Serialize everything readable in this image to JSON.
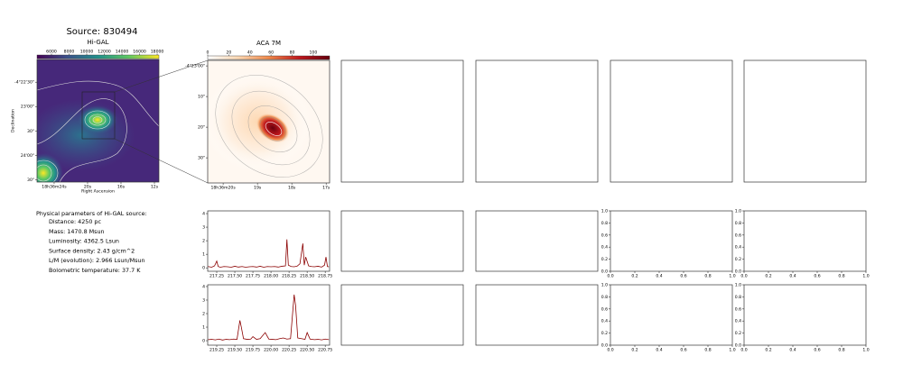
{
  "title": "Source: 830494",
  "source_parameters": {
    "heading": "Physical parameters of Hi-GAL source:",
    "items": [
      "Distance: 4250 pc",
      "Mass: 1470.8 Msun",
      "Luminosity: 4362.5 Lsun",
      "Surface density: 2.43 g/cm^2",
      "L/M (evolution): 2.966 Lsun/Msun",
      "Bolometric temperature: 37.7 K"
    ]
  },
  "chart_data": [
    {
      "type": "image",
      "title": "Hi-GAL",
      "xlabel": "Right Ascension",
      "ylabel": "Declination",
      "xlim": [
        26.05,
        11.46
      ],
      "xticks": [
        {
          "value": 24,
          "label": "18h36m24s"
        },
        {
          "value": 20,
          "label": "20s"
        },
        {
          "value": 16,
          "label": "16s"
        },
        {
          "value": 12,
          "label": "12s"
        }
      ],
      "ylim": [
        -15873,
        -15722
      ],
      "yticks": [
        {
          "value": -15750,
          "label": "-4°22'30\""
        },
        {
          "value": -15780,
          "label": "23'00\""
        },
        {
          "value": -15810,
          "label": "30\""
        },
        {
          "value": -15840,
          "label": "24'00\""
        },
        {
          "value": -15870,
          "label": "30\""
        }
      ],
      "colorbar": {
        "lim": [
          4360,
          18200
        ],
        "ticks": [
          6000,
          8000,
          10000,
          12000,
          14000,
          16000,
          18000
        ],
        "colors": [
          "#440154",
          "#3b528b",
          "#21918c",
          "#5ec962",
          "#fde725"
        ]
      }
    },
    {
      "type": "image",
      "title": "ACA 7M",
      "xlim": [
        20.45,
        16.9
      ],
      "xticks": [
        {
          "value": 20,
          "label": "18h36m20s"
        },
        {
          "value": 19,
          "label": "19s"
        },
        {
          "value": 18,
          "label": "18s"
        },
        {
          "value": 17,
          "label": "17s"
        }
      ],
      "ylim": [
        -15818.2,
        -15778.2
      ],
      "yticks": [
        {
          "value": -15780,
          "label": "-4°23'00\""
        },
        {
          "value": -15790,
          "label": "10\""
        },
        {
          "value": -15800,
          "label": "20\""
        },
        {
          "value": -15810,
          "label": "30\""
        }
      ],
      "colorbar": {
        "lim": [
          0,
          115.5
        ],
        "ticks": [
          0,
          20,
          40,
          60,
          80,
          100
        ],
        "colors": [
          "#ffffff",
          "#fdd9b4",
          "#f08a4b",
          "#c0181d",
          "#67000d"
        ]
      }
    },
    {
      "type": "line",
      "xlim": [
        217.125,
        218.81
      ],
      "ylim": [
        -0.25,
        4.2
      ],
      "xticks": [
        217.25,
        {
          "value": 217.5,
          "label": "217.50"
        },
        {
          "value": 217.75,
          "label": "217.75"
        },
        {
          "value": 218,
          "label": "218.00"
        },
        218.25,
        {
          "value": 218.5,
          "label": "218.50"
        },
        218.75
      ],
      "yticks": [
        0,
        1,
        2,
        3,
        4
      ],
      "x": [
        217.13,
        217.18,
        217.22,
        217.25,
        217.27,
        217.3,
        217.35,
        217.4,
        217.45,
        217.5,
        217.55,
        217.6,
        217.65,
        217.7,
        217.75,
        217.8,
        217.85,
        217.9,
        217.95,
        218.0,
        218.05,
        218.1,
        218.15,
        218.2,
        218.22,
        218.24,
        218.28,
        218.32,
        218.36,
        218.4,
        218.44,
        218.46,
        218.48,
        218.52,
        218.56,
        218.6,
        218.65,
        218.7,
        218.74,
        218.76,
        218.78,
        218.8
      ],
      "series": [
        {
          "color": "#8b0000",
          "values": [
            0.1,
            0.05,
            0.15,
            0.5,
            0.1,
            0.05,
            0.1,
            0.08,
            0.05,
            0.12,
            0.06,
            0.1,
            0.05,
            0.08,
            0.1,
            0.06,
            0.12,
            0.05,
            0.1,
            0.08,
            0.1,
            0.06,
            0.12,
            0.15,
            2.1,
            0.2,
            0.1,
            0.08,
            0.12,
            0.3,
            1.8,
            0.2,
            0.8,
            0.15,
            0.1,
            0.08,
            0.12,
            0.06,
            0.2,
            0.8,
            0.1,
            0.08
          ]
        }
      ]
    },
    {
      "type": "line",
      "xlim": [
        219.125,
        220.81
      ],
      "ylim": [
        -0.33,
        4.13
      ],
      "xticks": [
        219.25,
        {
          "value": 219.5,
          "label": "219.50"
        },
        219.75,
        {
          "value": 220,
          "label": "220.00"
        },
        220.25,
        {
          "value": 220.5,
          "label": "220.50"
        },
        220.75
      ],
      "yticks": [
        0,
        1,
        2,
        3,
        4
      ],
      "x": [
        219.13,
        219.18,
        219.23,
        219.28,
        219.33,
        219.38,
        219.43,
        219.48,
        219.53,
        219.57,
        219.59,
        219.62,
        219.67,
        219.72,
        219.75,
        219.8,
        219.85,
        219.92,
        219.97,
        220.02,
        220.07,
        220.12,
        220.17,
        220.22,
        220.27,
        220.32,
        220.34,
        220.37,
        220.42,
        220.47,
        220.5,
        220.54,
        220.6,
        220.65,
        220.7,
        220.75,
        220.8
      ],
      "series": [
        {
          "color": "#8b0000",
          "values": [
            0.08,
            0.1,
            0.06,
            0.12,
            0.05,
            0.1,
            0.08,
            0.12,
            0.1,
            1.5,
            1.0,
            0.15,
            0.1,
            0.12,
            0.3,
            0.1,
            0.15,
            0.6,
            0.12,
            0.1,
            0.08,
            0.15,
            0.2,
            0.12,
            0.15,
            3.4,
            2.6,
            0.2,
            0.15,
            0.1,
            0.6,
            0.12,
            0.08,
            0.1,
            0.06,
            0.12,
            0.08
          ]
        }
      ]
    },
    {
      "type": "empty",
      "xlim": [
        0,
        1
      ],
      "ylim": [
        0,
        1
      ],
      "xticks": [
        {
          "value": 0,
          "label": "0.0"
        },
        {
          "value": 0.2,
          "label": "0.2"
        },
        {
          "value": 0.4,
          "label": "0.4"
        },
        {
          "value": 0.6,
          "label": "0.6"
        },
        {
          "value": 0.8,
          "label": "0.8"
        },
        {
          "value": 1,
          "label": "1.0"
        }
      ],
      "yticks": [
        {
          "value": 0,
          "label": "0.0"
        },
        {
          "value": 0.2,
          "label": "0.2"
        },
        {
          "value": 0.4,
          "label": "0.4"
        },
        {
          "value": 0.6,
          "label": "0.6"
        },
        {
          "value": 0.8,
          "label": "0.8"
        },
        {
          "value": 1,
          "label": "1.0"
        }
      ]
    },
    {
      "type": "empty",
      "xlim": [
        0,
        1
      ],
      "ylim": [
        0,
        1
      ],
      "xticks": [
        {
          "value": 0,
          "label": "0.0"
        },
        {
          "value": 0.2,
          "label": "0.2"
        },
        {
          "value": 0.4,
          "label": "0.4"
        },
        {
          "value": 0.6,
          "label": "0.6"
        },
        {
          "value": 0.8,
          "label": "0.8"
        },
        {
          "value": 1,
          "label": "1.0"
        }
      ],
      "yticks": [
        {
          "value": 0,
          "label": "0.0"
        },
        {
          "value": 0.2,
          "label": "0.2"
        },
        {
          "value": 0.4,
          "label": "0.4"
        },
        {
          "value": 0.6,
          "label": "0.6"
        },
        {
          "value": 0.8,
          "label": "0.8"
        },
        {
          "value": 1,
          "label": "1.0"
        }
      ]
    },
    {
      "type": "empty",
      "xlim": [
        0,
        1
      ],
      "ylim": [
        0,
        1
      ],
      "xticks": [
        {
          "value": 0,
          "label": "0.0"
        },
        {
          "value": 0.2,
          "label": "0.2"
        },
        {
          "value": 0.4,
          "label": "0.4"
        },
        {
          "value": 0.6,
          "label": "0.6"
        },
        {
          "value": 0.8,
          "label": "0.8"
        },
        {
          "value": 1,
          "label": "1.0"
        }
      ],
      "yticks": [
        {
          "value": 0,
          "label": "0.0"
        },
        {
          "value": 0.2,
          "label": "0.2"
        },
        {
          "value": 0.4,
          "label": "0.4"
        },
        {
          "value": 0.6,
          "label": "0.6"
        },
        {
          "value": 0.8,
          "label": "0.8"
        },
        {
          "value": 1,
          "label": "1.0"
        }
      ]
    },
    {
      "type": "empty",
      "xlim": [
        0,
        1
      ],
      "ylim": [
        0,
        1
      ],
      "xticks": [
        {
          "value": 0,
          "label": "0.0"
        },
        {
          "value": 0.2,
          "label": "0.2"
        },
        {
          "value": 0.4,
          "label": "0.4"
        },
        {
          "value": 0.6,
          "label": "0.6"
        },
        {
          "value": 0.8,
          "label": "0.8"
        },
        {
          "value": 1,
          "label": "1.0"
        }
      ],
      "yticks": [
        {
          "value": 0,
          "label": "0.0"
        },
        {
          "value": 0.2,
          "label": "0.2"
        },
        {
          "value": 0.4,
          "label": "0.4"
        },
        {
          "value": 0.6,
          "label": "0.6"
        },
        {
          "value": 0.8,
          "label": "0.8"
        },
        {
          "value": 1,
          "label": "1.0"
        }
      ]
    }
  ]
}
